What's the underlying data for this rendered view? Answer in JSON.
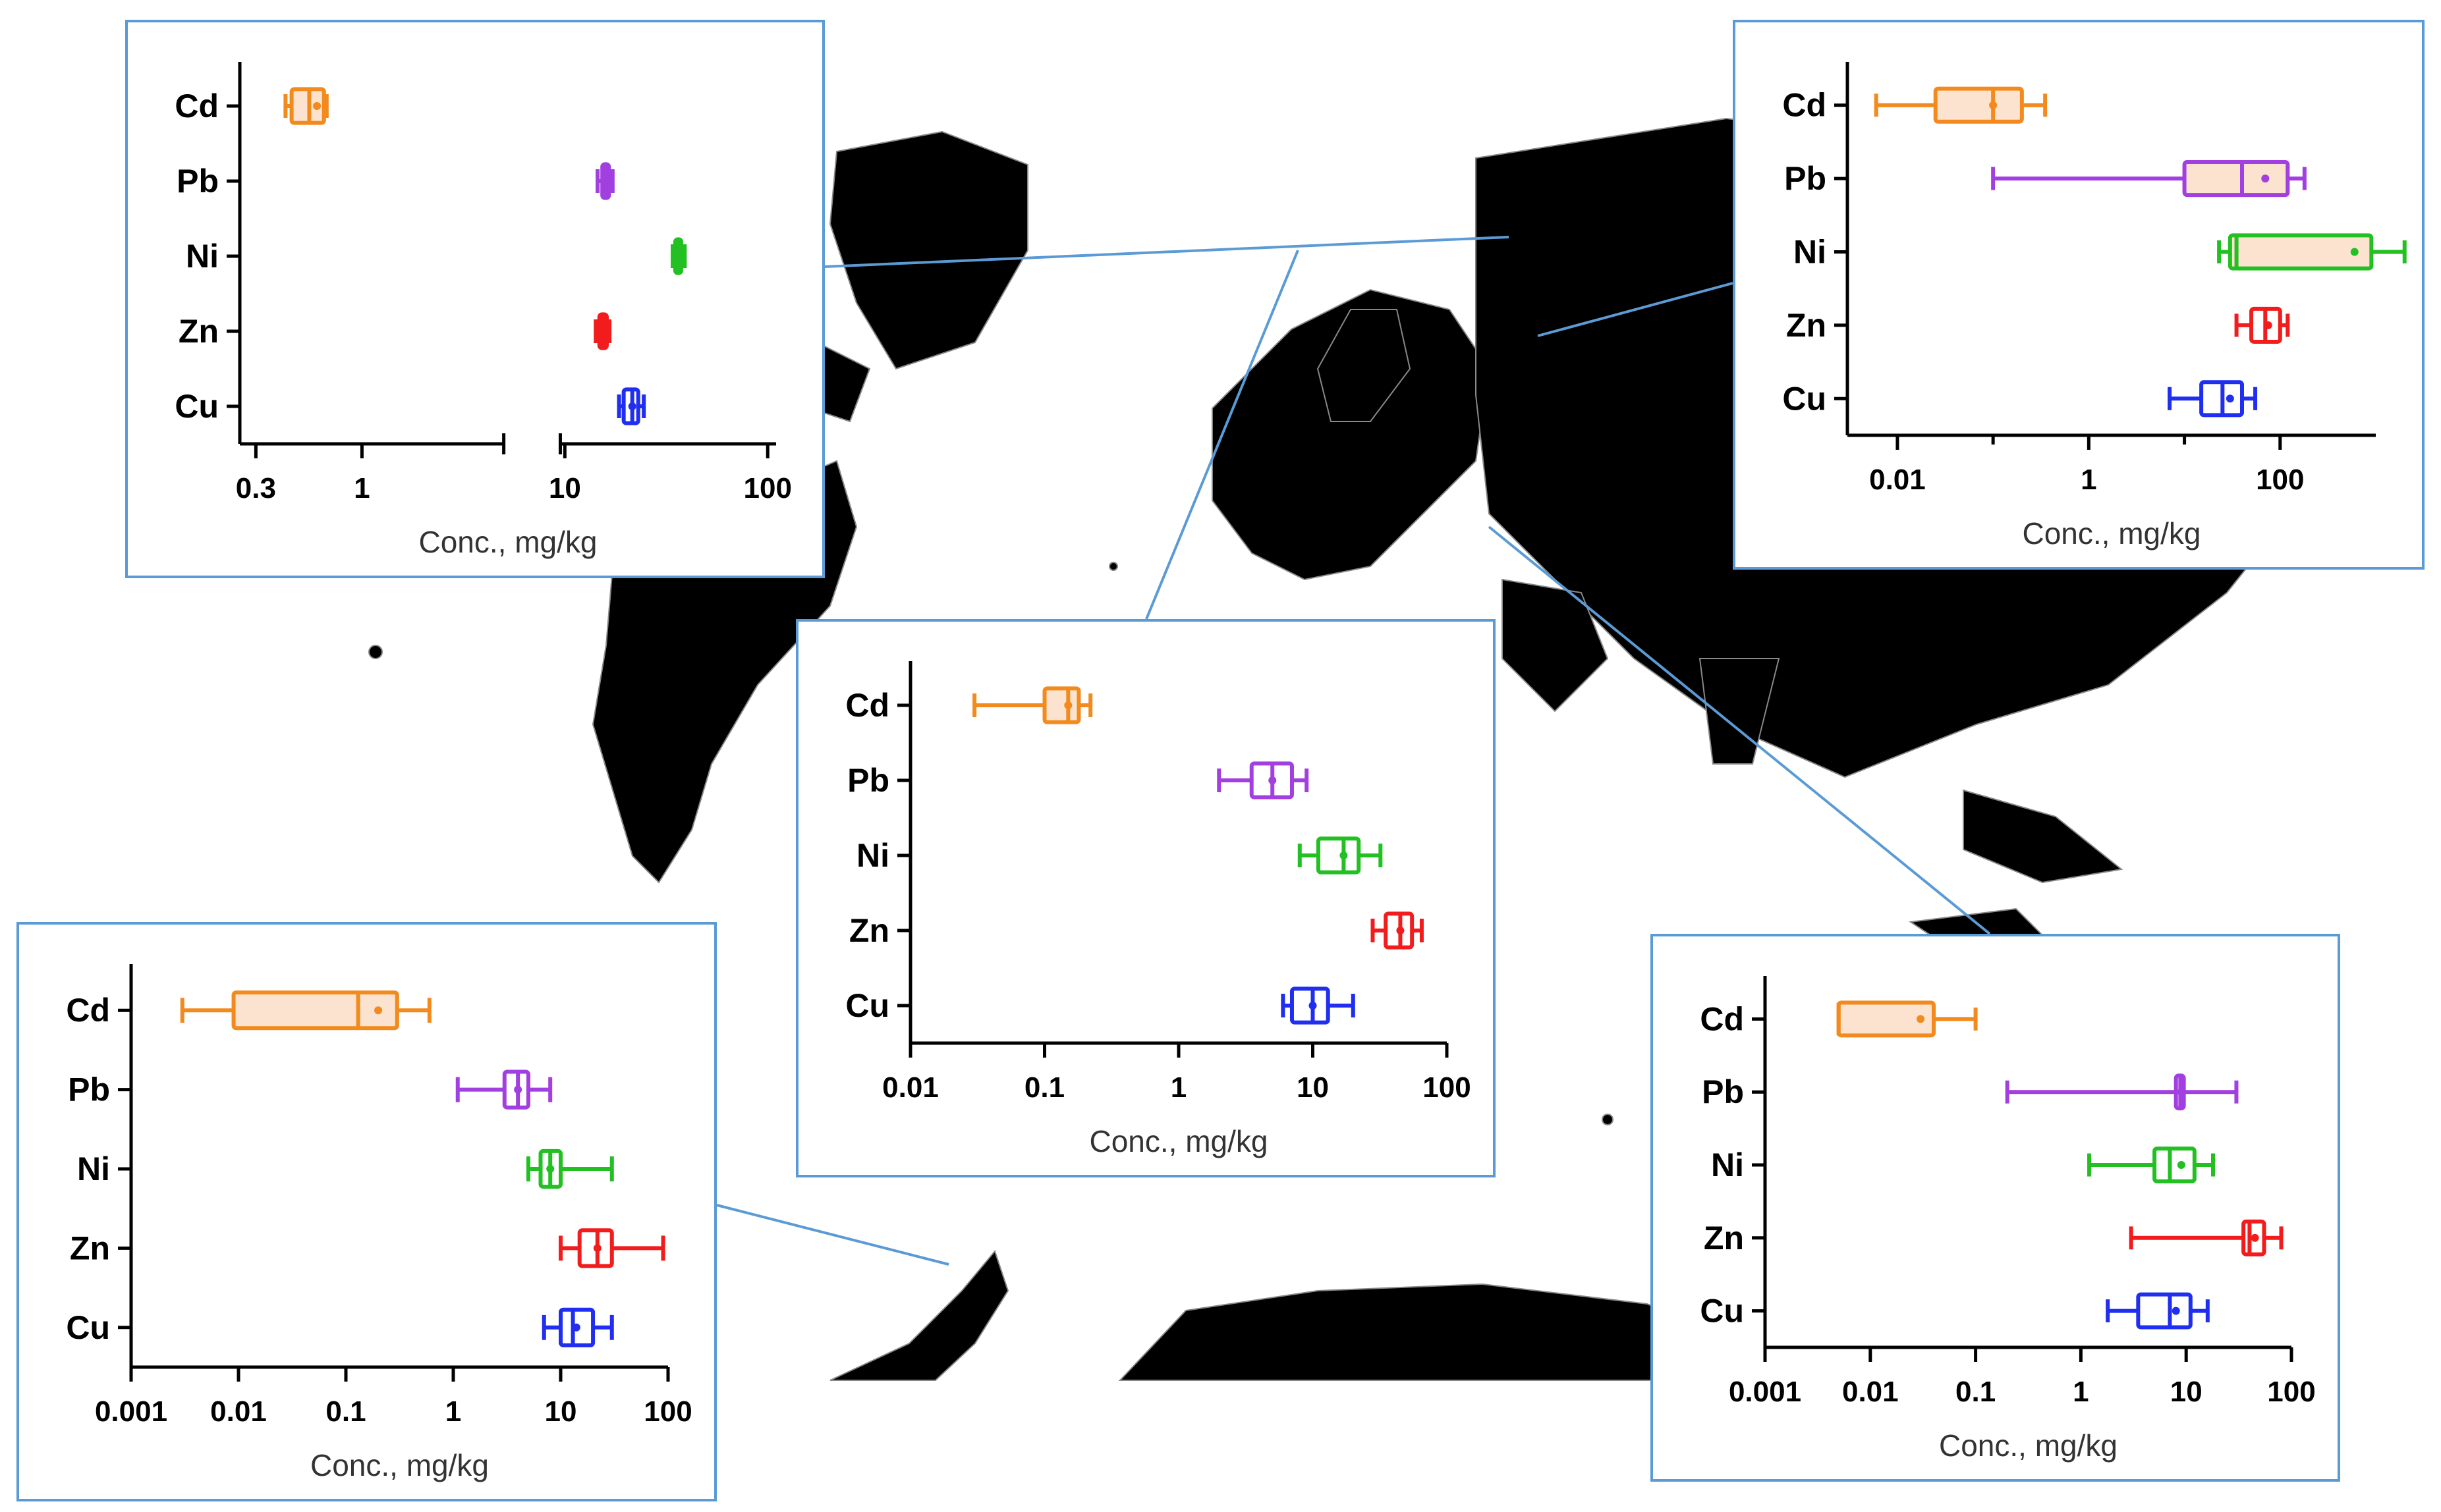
{
  "colors": {
    "Cd": "#f28a1e",
    "Pb": "#a23fe0",
    "Ni": "#22c022",
    "Zn": "#f21c1c",
    "Cu": "#1f2ef0",
    "box_fill": "#fbe3cf",
    "panel_border": "#5b9bd5",
    "land": "#000000"
  },
  "chart_data": [
    {
      "type": "boxplot",
      "panel": "north-america-arctic",
      "xlabel": "Conc., mg/kg",
      "xscale": "log",
      "xlim": [
        0.25,
        110
      ],
      "axis_break": [
        5,
        9.5
      ],
      "ticks": [
        {
          "v": 0.3,
          "t": "0.3"
        },
        {
          "v": 1,
          "t": "1"
        },
        {
          "v": 10,
          "t": "10"
        },
        {
          "v": 100,
          "t": "100"
        }
      ],
      "categories": [
        "Cd",
        "Pb",
        "Ni",
        "Zn",
        "Cu"
      ],
      "series": [
        {
          "name": "Cd",
          "min": 0.42,
          "q1": 0.45,
          "median": 0.55,
          "q3": 0.65,
          "max": 0.67,
          "mean": 0.6
        },
        {
          "name": "Pb",
          "min": 14.5,
          "q1": 15.3,
          "median": 15.9,
          "q3": 16.5,
          "max": 17.2,
          "mean": 15.9
        },
        {
          "name": "Ni",
          "min": 34,
          "q1": 35,
          "median": 36.5,
          "q3": 37.5,
          "max": 39,
          "mean": 36.5
        },
        {
          "name": "Zn",
          "min": 14.2,
          "q1": 14.8,
          "median": 15.4,
          "q3": 16.1,
          "max": 16.6,
          "mean": 15.4
        },
        {
          "name": "Cu",
          "min": 18.5,
          "q1": 19.5,
          "median": 21.5,
          "q3": 23,
          "max": 24.5,
          "mean": 21.5
        }
      ]
    },
    {
      "type": "boxplot",
      "panel": "siberia",
      "xlabel": "Conc., mg/kg",
      "xscale": "log",
      "xlim": [
        0.003,
        1000
      ],
      "ticks": [
        {
          "v": 0.01,
          "t": "0.01"
        },
        {
          "v": 1,
          "t": "1"
        },
        {
          "v": 100,
          "t": "100"
        }
      ],
      "minor_ticks": [
        0.1,
        10
      ],
      "categories": [
        "Cd",
        "Pb",
        "Ni",
        "Zn",
        "Cu"
      ],
      "series": [
        {
          "name": "Cd",
          "min": 0.006,
          "q1": 0.025,
          "median": 0.1,
          "q3": 0.2,
          "max": 0.35,
          "mean": 0.1
        },
        {
          "name": "Pb",
          "min": 0.1,
          "q1": 10,
          "median": 40,
          "q3": 120,
          "max": 180,
          "mean": 70
        },
        {
          "name": "Ni",
          "min": 23,
          "q1": 30,
          "median": 35,
          "q3": 900,
          "max": 2000,
          "mean": 600
        },
        {
          "name": "Zn",
          "min": 35,
          "q1": 50,
          "median": 70,
          "q3": 100,
          "max": 120,
          "mean": 75
        },
        {
          "name": "Cu",
          "min": 7,
          "q1": 15,
          "median": 25,
          "q3": 40,
          "max": 55,
          "mean": 30
        }
      ]
    },
    {
      "type": "boxplot",
      "panel": "europe",
      "xlabel": "Conc., mg/kg",
      "xscale": "log",
      "xlim": [
        0.01,
        100
      ],
      "ticks": [
        {
          "v": 0.01,
          "t": "0.01"
        },
        {
          "v": 0.1,
          "t": "0.1"
        },
        {
          "v": 1,
          "t": "1"
        },
        {
          "v": 10,
          "t": "10"
        },
        {
          "v": 100,
          "t": "100"
        }
      ],
      "categories": [
        "Cd",
        "Pb",
        "Ni",
        "Zn",
        "Cu"
      ],
      "series": [
        {
          "name": "Cd",
          "min": 0.03,
          "q1": 0.1,
          "median": 0.15,
          "q3": 0.18,
          "max": 0.22,
          "mean": 0.15
        },
        {
          "name": "Pb",
          "min": 2,
          "q1": 3.5,
          "median": 5,
          "q3": 7,
          "max": 9,
          "mean": 5
        },
        {
          "name": "Ni",
          "min": 8,
          "q1": 11,
          "median": 17,
          "q3": 22,
          "max": 32,
          "mean": 17
        },
        {
          "name": "Zn",
          "min": 28,
          "q1": 35,
          "median": 45,
          "q3": 55,
          "max": 65,
          "mean": 45
        },
        {
          "name": "Cu",
          "min": 6,
          "q1": 7,
          "median": 10,
          "q3": 13,
          "max": 20,
          "mean": 10
        }
      ]
    },
    {
      "type": "boxplot",
      "panel": "antarctic-peninsula",
      "xlabel": "Conc., mg/kg",
      "xscale": "log",
      "xlim": [
        0.001,
        100
      ],
      "ticks": [
        {
          "v": 0.001,
          "t": "0.001"
        },
        {
          "v": 0.01,
          "t": "0.01"
        },
        {
          "v": 0.1,
          "t": "0.1"
        },
        {
          "v": 1,
          "t": "1"
        },
        {
          "v": 10,
          "t": "10"
        },
        {
          "v": 100,
          "t": "100"
        }
      ],
      "categories": [
        "Cd",
        "Pb",
        "Ni",
        "Zn",
        "Cu"
      ],
      "series": [
        {
          "name": "Cd",
          "min": 0.003,
          "q1": 0.009,
          "median": 0.13,
          "q3": 0.3,
          "max": 0.6,
          "mean": 0.2
        },
        {
          "name": "Pb",
          "min": 1.1,
          "q1": 3,
          "median": 4,
          "q3": 5,
          "max": 8,
          "mean": 4
        },
        {
          "name": "Ni",
          "min": 5,
          "q1": 6.5,
          "median": 8,
          "q3": 10,
          "max": 30,
          "mean": 8
        },
        {
          "name": "Zn",
          "min": 10,
          "q1": 15,
          "median": 22,
          "q3": 30,
          "max": 90,
          "mean": 22
        },
        {
          "name": "Cu",
          "min": 7,
          "q1": 10,
          "median": 13,
          "q3": 20,
          "max": 30,
          "mean": 14
        }
      ]
    },
    {
      "type": "boxplot",
      "panel": "antarctica-east",
      "xlabel": "Conc., mg/kg",
      "xscale": "log",
      "xlim": [
        0.001,
        100
      ],
      "ticks": [
        {
          "v": 0.001,
          "t": "0.001"
        },
        {
          "v": 0.01,
          "t": "0.01"
        },
        {
          "v": 0.1,
          "t": "0.1"
        },
        {
          "v": 1,
          "t": "1"
        },
        {
          "v": 10,
          "t": "10"
        },
        {
          "v": 100,
          "t": "100"
        }
      ],
      "categories": [
        "Cd",
        "Pb",
        "Ni",
        "Zn",
        "Cu"
      ],
      "series": [
        {
          "name": "Cd",
          "min": 0.005,
          "q1": 0.005,
          "median": 0.005,
          "q3": 0.04,
          "max": 0.1,
          "mean": 0.03
        },
        {
          "name": "Pb",
          "min": 0.2,
          "q1": 8,
          "median": 8.8,
          "q3": 9.5,
          "max": 30,
          "mean": 9
        },
        {
          "name": "Ni",
          "min": 1.2,
          "q1": 5,
          "median": 7,
          "q3": 12,
          "max": 18,
          "mean": 9
        },
        {
          "name": "Zn",
          "min": 3,
          "q1": 35,
          "median": 40,
          "q3": 55,
          "max": 80,
          "mean": 45
        },
        {
          "name": "Cu",
          "min": 1.8,
          "q1": 3.5,
          "median": 7,
          "q3": 11,
          "max": 16,
          "mean": 8
        }
      ]
    }
  ]
}
